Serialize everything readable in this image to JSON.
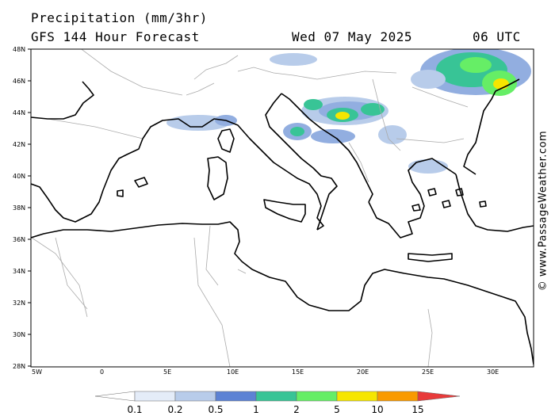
{
  "header": {
    "title": "Precipitation (mm/3hr)",
    "subtitle": "GFS 144 Hour Forecast",
    "date": "Wed 07 May 2025",
    "time": "06 UTC"
  },
  "credit": "© www.PassageWeather.com",
  "axes": {
    "lat_labels": [
      "48N",
      "46N",
      "44N",
      "42N",
      "40N",
      "38N",
      "36N",
      "34N",
      "32N",
      "30N",
      "28N"
    ],
    "lon_labels": [
      "5W",
      "0",
      "5E",
      "10E",
      "15E",
      "20E",
      "25E",
      "30E"
    ]
  },
  "legend": {
    "labels": [
      "0.1",
      "0.2",
      "0.5",
      "1",
      "2",
      "5",
      "10",
      "15"
    ],
    "colors": [
      "#ffffff",
      "#e4ecf8",
      "#b8ccea",
      "#92aee0",
      "#5c82d4",
      "#38c496",
      "#66ee66",
      "#f6e600",
      "#f99a00",
      "#e83a3a"
    ]
  },
  "colors": {
    "land_outline": "#000000",
    "border": "#aaaaaa",
    "frame": "#000000"
  }
}
